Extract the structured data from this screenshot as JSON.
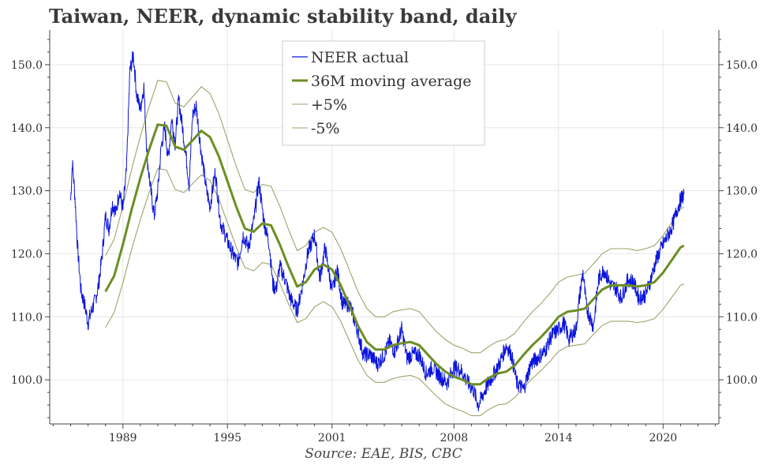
{
  "title": "Taiwan, NEER, dynamic stability band, daily",
  "source": "Source: EAE, BIS, CBC",
  "chart_data": {
    "type": "line",
    "title": "Taiwan, NEER, dynamic stability band, daily",
    "xlabel": "",
    "ylabel": "",
    "xlim": [
      1984.8,
      2023.2
    ],
    "ylim": [
      93.0,
      155.5
    ],
    "x_ticks": [
      1989,
      1995,
      2001,
      2008,
      2014,
      2020
    ],
    "x_tick_labels": [
      "1989",
      "1995",
      "2001",
      "2008",
      "2014",
      "2020"
    ],
    "y_ticks": [
      100,
      110,
      120,
      130,
      140,
      150
    ],
    "y_tick_labels": [
      "100.0",
      "110.0",
      "120.0",
      "130.0",
      "140.0",
      "150.0"
    ],
    "grid": true,
    "legend_position": "top-center",
    "colors": {
      "actual": "#0a14dc",
      "ma": "#6b8e23",
      "band": "#9aa56a"
    },
    "series": [
      {
        "name": "NEER actual",
        "x": [
          1986.0,
          1986.1,
          1986.25,
          1986.4,
          1986.6,
          1986.8,
          1987.0,
          1987.2,
          1987.4,
          1987.6,
          1987.8,
          1988.0,
          1988.2,
          1988.4,
          1988.6,
          1988.8,
          1989.0,
          1989.2,
          1989.4,
          1989.6,
          1989.8,
          1990.0,
          1990.2,
          1990.4,
          1990.6,
          1990.8,
          1991.0,
          1991.2,
          1991.4,
          1991.6,
          1991.8,
          1992.0,
          1992.2,
          1992.4,
          1992.6,
          1992.8,
          1993.0,
          1993.2,
          1993.5,
          1993.8,
          1994.0,
          1994.3,
          1994.6,
          1995.0,
          1995.3,
          1995.6,
          1995.9,
          1996.2,
          1996.5,
          1996.8,
          1997.1,
          1997.4,
          1997.6,
          1997.8,
          1998.0,
          1998.3,
          1998.6,
          1999.0,
          1999.3,
          1999.6,
          2000.0,
          2000.3,
          2000.6,
          2001.0,
          2001.3,
          2001.6,
          2002.0,
          2002.4,
          2002.8,
          2003.2,
          2003.6,
          2004.0,
          2004.3,
          2004.6,
          2005.0,
          2005.3,
          2005.6,
          2006.0,
          2006.4,
          2006.8,
          2007.2,
          2007.6,
          2008.0,
          2008.4,
          2008.8,
          2009.1,
          2009.4,
          2009.8,
          2010.2,
          2010.6,
          2011.0,
          2011.3,
          2011.6,
          2012.0,
          2012.4,
          2012.8,
          2013.2,
          2013.6,
          2014.0,
          2014.3,
          2014.6,
          2015.0,
          2015.2,
          2015.4,
          2015.6,
          2015.8,
          2016.0,
          2016.3,
          2016.6,
          2017.0,
          2017.3,
          2017.6,
          2018.0,
          2018.3,
          2018.6,
          2019.0,
          2019.3,
          2019.6,
          2020.0,
          2020.3,
          2020.6,
          2020.8,
          2021.0,
          2021.2
        ],
        "values": [
          128.5,
          134.5,
          129.0,
          121.0,
          114.0,
          112.0,
          109.0,
          111.0,
          112.5,
          115.0,
          119.5,
          126.0,
          124.0,
          128.0,
          126.5,
          130.0,
          127.0,
          133.0,
          149.0,
          151.5,
          145.0,
          143.0,
          146.5,
          135.0,
          130.0,
          126.0,
          130.0,
          137.0,
          140.0,
          135.0,
          141.5,
          137.5,
          144.5,
          140.5,
          136.0,
          131.0,
          142.0,
          143.5,
          136.0,
          130.0,
          127.5,
          133.0,
          125.0,
          122.0,
          120.0,
          118.5,
          123.0,
          121.0,
          125.0,
          131.5,
          125.0,
          121.5,
          115.0,
          114.5,
          118.0,
          116.0,
          113.0,
          111.0,
          115.0,
          120.0,
          123.0,
          116.0,
          121.0,
          114.0,
          117.5,
          112.0,
          112.0,
          108.5,
          104.0,
          104.0,
          102.5,
          104.0,
          106.0,
          104.5,
          108.0,
          103.5,
          104.0,
          104.0,
          101.0,
          102.0,
          100.5,
          99.5,
          102.0,
          101.5,
          99.5,
          98.5,
          96.0,
          98.5,
          100.5,
          102.5,
          105.5,
          104.0,
          99.5,
          98.5,
          102.5,
          103.5,
          104.5,
          107.0,
          108.0,
          109.0,
          106.5,
          108.0,
          113.0,
          117.0,
          111.5,
          110.0,
          108.5,
          116.0,
          117.5,
          115.0,
          114.5,
          113.0,
          116.0,
          115.5,
          113.0,
          113.5,
          116.0,
          119.0,
          121.5,
          123.0,
          125.0,
          127.0,
          128.5,
          129.5
        ]
      },
      {
        "name": "36M moving average",
        "x": [
          1988.0,
          1988.5,
          1989.0,
          1989.5,
          1990.0,
          1990.5,
          1991.0,
          1991.5,
          1992.0,
          1992.5,
          1993.0,
          1993.5,
          1994.0,
          1994.5,
          1995.0,
          1995.5,
          1996.0,
          1996.5,
          1997.0,
          1997.5,
          1998.0,
          1998.5,
          1999.0,
          1999.5,
          2000.0,
          2000.5,
          2001.0,
          2001.5,
          2002.0,
          2002.5,
          2003.0,
          2003.5,
          2004.0,
          2004.5,
          2005.0,
          2005.5,
          2006.0,
          2006.5,
          2007.0,
          2007.5,
          2008.0,
          2008.5,
          2009.0,
          2009.5,
          2010.0,
          2010.5,
          2011.0,
          2011.5,
          2012.0,
          2012.5,
          2013.0,
          2013.5,
          2014.0,
          2014.5,
          2015.0,
          2015.5,
          2016.0,
          2016.5,
          2017.0,
          2017.5,
          2018.0,
          2018.5,
          2019.0,
          2019.5,
          2020.0,
          2020.5,
          2021.0,
          2021.2
        ],
        "values": [
          114.0,
          116.5,
          121.5,
          127.0,
          132.0,
          136.5,
          140.5,
          140.3,
          137.0,
          136.5,
          138.0,
          139.5,
          138.5,
          135.5,
          131.5,
          127.5,
          124.0,
          123.5,
          124.8,
          124.5,
          121.5,
          118.0,
          114.8,
          115.5,
          117.5,
          118.3,
          117.5,
          115.0,
          111.8,
          108.5,
          106.0,
          104.8,
          104.8,
          105.5,
          105.8,
          106.0,
          105.5,
          104.0,
          102.5,
          101.3,
          100.5,
          100.0,
          99.3,
          99.3,
          100.3,
          101.0,
          101.3,
          102.3,
          104.0,
          105.5,
          106.8,
          108.3,
          110.0,
          110.8,
          111.0,
          111.3,
          112.8,
          114.3,
          115.0,
          115.0,
          115.0,
          114.8,
          115.0,
          115.5,
          117.0,
          119.0,
          121.0,
          121.3
        ]
      },
      {
        "name": "+5%",
        "x": [
          1988.0,
          1988.5,
          1989.0,
          1989.5,
          1990.0,
          1990.5,
          1991.0,
          1991.5,
          1992.0,
          1992.5,
          1993.0,
          1993.5,
          1994.0,
          1994.5,
          1995.0,
          1995.5,
          1996.0,
          1996.5,
          1997.0,
          1997.5,
          1998.0,
          1998.5,
          1999.0,
          1999.5,
          2000.0,
          2000.5,
          2001.0,
          2001.5,
          2002.0,
          2002.5,
          2003.0,
          2003.5,
          2004.0,
          2004.5,
          2005.0,
          2005.5,
          2006.0,
          2006.5,
          2007.0,
          2007.5,
          2008.0,
          2008.5,
          2009.0,
          2009.5,
          2010.0,
          2010.5,
          2011.0,
          2011.5,
          2012.0,
          2012.5,
          2013.0,
          2013.5,
          2014.0,
          2014.5,
          2015.0,
          2015.5,
          2016.0,
          2016.5,
          2017.0,
          2017.5,
          2018.0,
          2018.5,
          2019.0,
          2019.5,
          2020.0,
          2020.5,
          2021.0,
          2021.2
        ],
        "values": [
          119.7,
          122.3,
          127.6,
          133.4,
          138.6,
          143.3,
          147.5,
          147.3,
          143.9,
          143.3,
          144.9,
          146.5,
          145.4,
          142.3,
          138.1,
          133.9,
          130.2,
          129.7,
          131.0,
          130.7,
          127.6,
          123.9,
          120.5,
          121.3,
          123.4,
          124.2,
          123.4,
          120.8,
          117.4,
          113.9,
          111.3,
          110.0,
          110.0,
          110.8,
          111.1,
          111.3,
          110.8,
          109.2,
          107.6,
          106.4,
          105.5,
          105.0,
          104.3,
          104.3,
          105.3,
          106.1,
          106.4,
          107.4,
          109.2,
          110.8,
          112.1,
          113.7,
          115.5,
          116.3,
          116.6,
          116.9,
          118.4,
          120.0,
          120.8,
          120.8,
          120.8,
          120.5,
          120.8,
          121.3,
          122.9,
          125.0,
          127.1,
          127.4
        ]
      },
      {
        "name": "-5%",
        "x": [
          1988.0,
          1988.5,
          1989.0,
          1989.5,
          1990.0,
          1990.5,
          1991.0,
          1991.5,
          1992.0,
          1992.5,
          1993.0,
          1993.5,
          1994.0,
          1994.5,
          1995.0,
          1995.5,
          1996.0,
          1996.5,
          1997.0,
          1997.5,
          1998.0,
          1998.5,
          1999.0,
          1999.5,
          2000.0,
          2000.5,
          2001.0,
          2001.5,
          2002.0,
          2002.5,
          2003.0,
          2003.5,
          2004.0,
          2004.5,
          2005.0,
          2005.5,
          2006.0,
          2006.5,
          2007.0,
          2007.5,
          2008.0,
          2008.5,
          2009.0,
          2009.5,
          2010.0,
          2010.5,
          2011.0,
          2011.5,
          2012.0,
          2012.5,
          2013.0,
          2013.5,
          2014.0,
          2014.5,
          2015.0,
          2015.5,
          2016.0,
          2016.5,
          2017.0,
          2017.5,
          2018.0,
          2018.5,
          2019.0,
          2019.5,
          2020.0,
          2020.5,
          2021.0,
          2021.2
        ],
        "values": [
          108.3,
          110.7,
          115.4,
          120.7,
          125.4,
          129.7,
          133.5,
          133.3,
          130.2,
          129.7,
          131.1,
          132.5,
          131.6,
          128.7,
          124.9,
          121.1,
          117.8,
          117.3,
          118.6,
          118.3,
          115.4,
          112.1,
          109.1,
          109.7,
          111.6,
          112.4,
          111.6,
          109.3,
          106.2,
          103.1,
          100.7,
          99.6,
          99.6,
          100.2,
          100.5,
          100.7,
          100.2,
          98.8,
          97.4,
          96.2,
          95.5,
          95.0,
          94.3,
          94.3,
          95.3,
          96.0,
          96.2,
          97.2,
          98.8,
          100.2,
          101.5,
          102.9,
          104.5,
          105.3,
          105.5,
          105.7,
          107.2,
          108.6,
          109.3,
          109.3,
          109.3,
          109.1,
          109.3,
          109.7,
          111.2,
          113.1,
          115.0,
          115.2
        ]
      }
    ]
  }
}
